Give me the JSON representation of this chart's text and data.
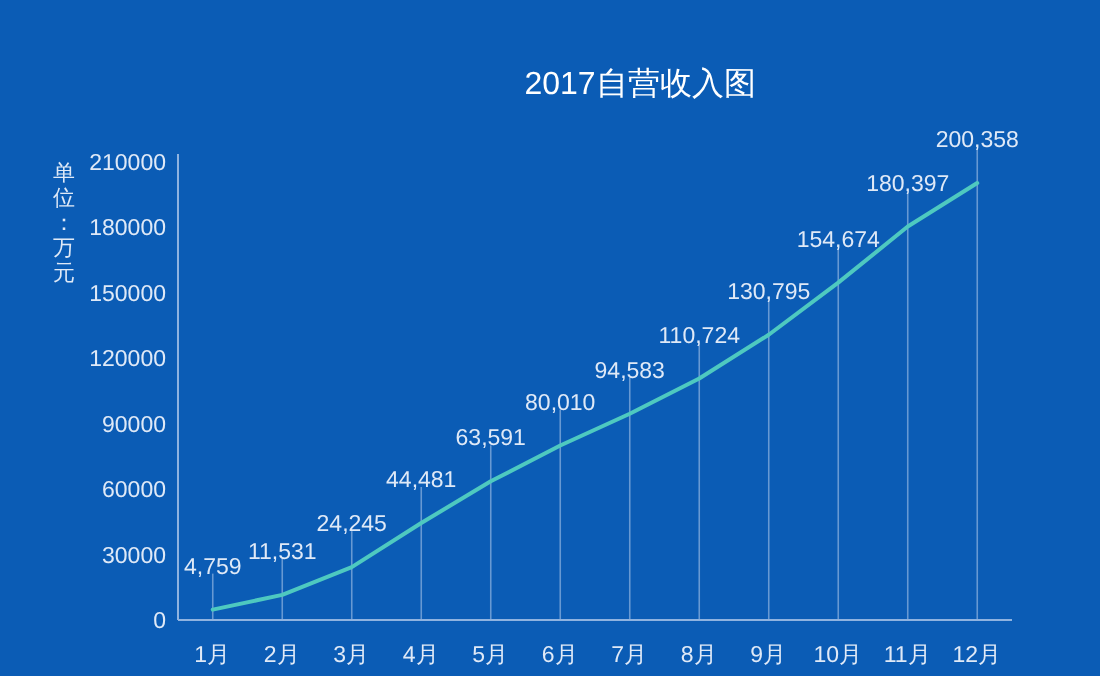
{
  "chart_data": {
    "type": "line",
    "title": "2017自营收入图",
    "ylabel": "单位：万元",
    "categories": [
      "1月",
      "2月",
      "3月",
      "4月",
      "5月",
      "6月",
      "7月",
      "8月",
      "9月",
      "10月",
      "11月",
      "12月"
    ],
    "series": [
      {
        "color": "#4ec9c0",
        "values": [
          4759,
          11531,
          24245,
          44481,
          63591,
          80010,
          94583,
          110724,
          130795,
          154674,
          180397,
          200358
        ],
        "value_labels": [
          "4,759",
          "11,531",
          "24,245",
          "44,481",
          "63,591",
          "80,010",
          "94,583",
          "110,724",
          "130,795",
          "154,674",
          "180,397",
          "200,358"
        ]
      }
    ],
    "ylim": [
      0,
      210000
    ],
    "yticks": [
      0,
      30000,
      60000,
      90000,
      120000,
      150000,
      180000,
      210000
    ],
    "grid": "x",
    "marker": "none",
    "line_style": "solid"
  }
}
